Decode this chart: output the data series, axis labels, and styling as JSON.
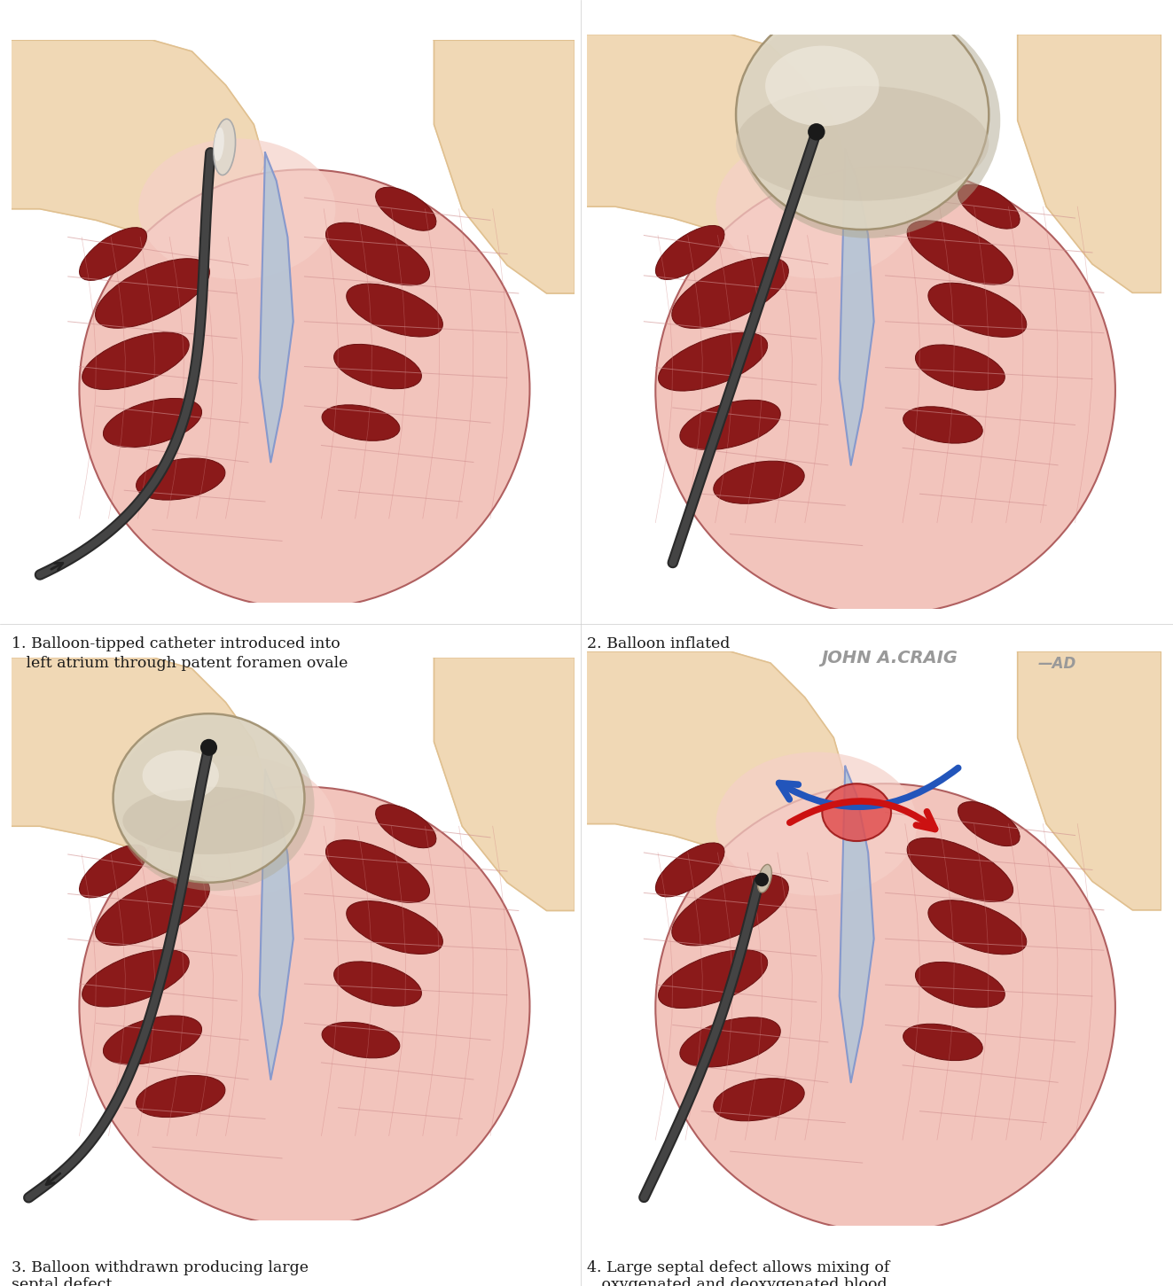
{
  "bg_color": "#ffffff",
  "label1_line1": "1. Balloon-tipped catheter introduced into",
  "label1_line2": "   left atrium through patent foramen ovale",
  "label2": "2. Balloon inflated",
  "label3_line1": "3. Balloon withdrawn producing large",
  "label3_line2": "septal defect",
  "label4_line1": "4. Large septal defect allows mixing of",
  "label4_line2": "   oxygenated and deoxygenated blood",
  "watermark": "JOHN A.CRAIG",
  "watermark2": "AD",
  "label_fontsize": 12.5,
  "label_color": "#1a1a1a",
  "heart_fill": "#f2c4bc",
  "heart_border": "#c88888",
  "skin_color": "#f0d8b5",
  "skin_dark": "#e0c090",
  "skin_orange": "#e8a878",
  "catheter_outer": "#2a2a2a",
  "catheter_inner": "#666666",
  "balloon_base": "#c8bca8",
  "balloon_light": "#ddd5c2",
  "balloon_highlight": "#eee8dc",
  "septum_color": "#b0c4d8",
  "septum_dark": "#8899bb",
  "blood_red": "#8b1a1a",
  "blood_medium": "#a03030",
  "muscle_line": "#c08080",
  "blue_arrow": "#2255bb",
  "red_arrow": "#cc1111",
  "watermark_color": "#999999"
}
